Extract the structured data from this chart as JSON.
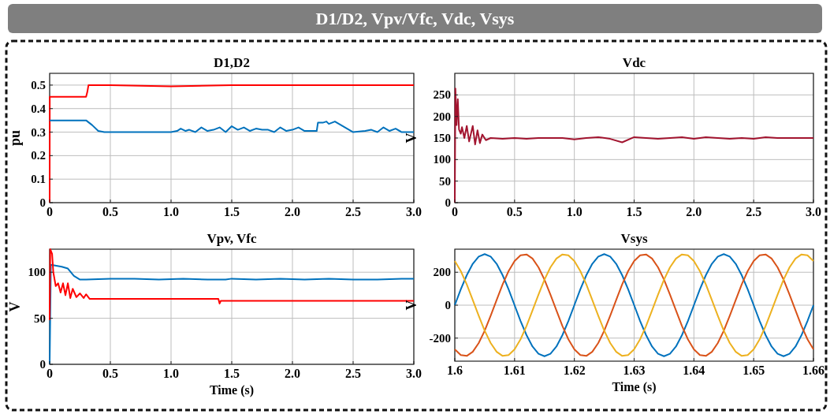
{
  "chart_data": [
    {
      "type": "other",
      "title": "D1/D2, Vpv/Vfc, Vdc, Vsys"
    },
    {
      "type": "line",
      "title": "D1,D2",
      "ylabel": "pu",
      "xlim": [
        0,
        3
      ],
      "ylim": [
        0,
        0.55
      ],
      "xticks": [
        0,
        0.5,
        {
          "value": 1,
          "label": "1.0"
        },
        1.5,
        {
          "value": 2,
          "label": "2.0"
        },
        2.5,
        {
          "value": 3,
          "label": "3.0"
        }
      ],
      "yticks": [
        0,
        0.1,
        0.2,
        0.3,
        0.4,
        0.5
      ],
      "grid": true,
      "marker": "none",
      "line_style": "solid",
      "series": [
        {
          "color": "#ff0000",
          "x": [
            0,
            0.001,
            0.3,
            0.31,
            0.32,
            0.5,
            1.0,
            1.5,
            2.0,
            2.5,
            3.0
          ],
          "values": [
            0,
            0.45,
            0.45,
            0.47,
            0.5,
            0.5,
            0.495,
            0.5,
            0.5,
            0.5,
            0.5
          ]
        },
        {
          "color": "#0072bd",
          "x": [
            0,
            0.3,
            0.35,
            0.4,
            0.45,
            0.6,
            0.8,
            1.0,
            1.05,
            1.08,
            1.12,
            1.15,
            1.2,
            1.25,
            1.3,
            1.35,
            1.4,
            1.45,
            1.5,
            1.55,
            1.6,
            1.65,
            1.7,
            1.75,
            1.8,
            1.85,
            1.9,
            1.95,
            2.0,
            2.05,
            2.1,
            2.15,
            2.2,
            2.21,
            2.25,
            2.28,
            2.3,
            2.35,
            2.4,
            2.45,
            2.5,
            2.6,
            2.65,
            2.7,
            2.75,
            2.8,
            2.85,
            2.9,
            3.0
          ],
          "values": [
            0.35,
            0.35,
            0.33,
            0.305,
            0.3,
            0.3,
            0.3,
            0.3,
            0.305,
            0.315,
            0.305,
            0.31,
            0.3,
            0.32,
            0.305,
            0.31,
            0.32,
            0.3,
            0.325,
            0.31,
            0.32,
            0.305,
            0.315,
            0.31,
            0.31,
            0.3,
            0.32,
            0.305,
            0.31,
            0.32,
            0.305,
            0.305,
            0.305,
            0.34,
            0.34,
            0.345,
            0.335,
            0.345,
            0.33,
            0.315,
            0.3,
            0.305,
            0.31,
            0.3,
            0.32,
            0.305,
            0.315,
            0.3,
            0.3
          ]
        }
      ]
    },
    {
      "type": "line",
      "title": "Vdc",
      "ylabel": "V",
      "xlim": [
        0,
        3
      ],
      "ylim": [
        0,
        300
      ],
      "xticks": [
        0,
        0.5,
        {
          "value": 1,
          "label": "1.0"
        },
        1.5,
        {
          "value": 2,
          "label": "2.0"
        },
        2.5,
        {
          "value": 3,
          "label": "3.0"
        }
      ],
      "yticks": [
        0,
        50,
        100,
        150,
        200,
        250
      ],
      "grid": true,
      "marker": "none",
      "line_style": "solid",
      "series": [
        {
          "color": "#a2142f",
          "x": [
            0,
            0.005,
            0.015,
            0.025,
            0.035,
            0.05,
            0.06,
            0.08,
            0.1,
            0.12,
            0.15,
            0.17,
            0.19,
            0.21,
            0.23,
            0.26,
            0.3,
            0.4,
            0.5,
            0.6,
            0.7,
            0.8,
            0.9,
            1.0,
            1.1,
            1.2,
            1.3,
            1.4,
            1.5,
            1.6,
            1.7,
            1.8,
            1.9,
            2.0,
            2.1,
            2.2,
            2.3,
            2.4,
            2.5,
            2.6,
            2.7,
            2.8,
            2.9,
            3.0
          ],
          "values": [
            0,
            265,
            180,
            240,
            170,
            160,
            175,
            150,
            178,
            142,
            178,
            135,
            168,
            138,
            158,
            145,
            150,
            148,
            150,
            148,
            150,
            150,
            150,
            147,
            150,
            152,
            148,
            140,
            152,
            150,
            148,
            150,
            152,
            148,
            152,
            150,
            148,
            150,
            148,
            152,
            150,
            150,
            150,
            150
          ]
        }
      ]
    },
    {
      "type": "line",
      "title": "Vpv, Vfc",
      "xlabel": "Time (s)",
      "ylabel": "V",
      "xlim": [
        0,
        3
      ],
      "ylim": [
        0,
        125
      ],
      "xticks": [
        0,
        0.5,
        {
          "value": 1,
          "label": "1.0"
        },
        1.5,
        {
          "value": 2,
          "label": "2.0"
        },
        2.5,
        {
          "value": 3,
          "label": "3.0"
        }
      ],
      "yticks": [
        0,
        50,
        100
      ],
      "grid": true,
      "marker": "none",
      "line_style": "solid",
      "series": [
        {
          "color": "#0072bd",
          "x": [
            0,
            0.01,
            0.1,
            0.15,
            0.2,
            0.25,
            0.3,
            0.5,
            0.7,
            0.9,
            1.1,
            1.3,
            1.45,
            1.5,
            1.7,
            1.9,
            2.1,
            2.3,
            2.5,
            2.7,
            2.9,
            3.0
          ],
          "values": [
            0,
            108,
            106,
            104,
            96,
            92,
            92,
            93,
            93,
            92,
            93,
            92,
            92,
            93,
            92,
            93,
            92,
            93,
            92,
            92,
            93,
            93
          ]
        },
        {
          "color": "#ff0000",
          "x": [
            0,
            0.005,
            0.02,
            0.03,
            0.05,
            0.07,
            0.09,
            0.11,
            0.13,
            0.15,
            0.17,
            0.19,
            0.22,
            0.25,
            0.28,
            0.3,
            0.33,
            1.39,
            1.4,
            1.41,
            3.0
          ],
          "values": [
            48,
            125,
            120,
            100,
            85,
            88,
            78,
            88,
            75,
            88,
            72,
            82,
            73,
            77,
            72,
            76,
            71,
            71,
            66,
            69,
            69
          ]
        }
      ]
    },
    {
      "type": "line",
      "title": "Vsys",
      "xlabel": "Time (s)",
      "ylabel": "V",
      "xlim": [
        1.6,
        1.66
      ],
      "ylim": [
        -340,
        340
      ],
      "xticks": [
        1.6,
        1.61,
        1.62,
        1.63,
        1.64,
        1.65,
        1.66
      ],
      "yticks": [
        -200,
        0,
        200
      ],
      "grid": true,
      "marker": "none",
      "line_style": "solid",
      "x": [
        1.6,
        1.601,
        1.602,
        1.603,
        1.604,
        1.605,
        1.606,
        1.607,
        1.608,
        1.609,
        1.61,
        1.611,
        1.612,
        1.613,
        1.614,
        1.615,
        1.616,
        1.617,
        1.618,
        1.619,
        1.62,
        1.621,
        1.622,
        1.623,
        1.624,
        1.625,
        1.626,
        1.627,
        1.628,
        1.629,
        1.63,
        1.631,
        1.632,
        1.633,
        1.634,
        1.635,
        1.636,
        1.637,
        1.638,
        1.639,
        1.64,
        1.641,
        1.642,
        1.643,
        1.644,
        1.645,
        1.646,
        1.647,
        1.648,
        1.649,
        1.65,
        1.651,
        1.652,
        1.653,
        1.654,
        1.655,
        1.656,
        1.657,
        1.658,
        1.659,
        1.66
      ],
      "series": [
        {
          "color": "#0072bd",
          "values": [
            0,
            96,
            182,
            251,
            295,
            310,
            295,
            251,
            182,
            96,
            0,
            -96,
            -182,
            -251,
            -295,
            -310,
            -295,
            -251,
            -182,
            -96,
            0,
            96,
            182,
            251,
            295,
            310,
            295,
            251,
            182,
            96,
            0,
            -96,
            -182,
            -251,
            -295,
            -310,
            -295,
            -251,
            -182,
            -96,
            0,
            96,
            182,
            251,
            295,
            310,
            295,
            251,
            182,
            96,
            0,
            -96,
            -182,
            -251,
            -295,
            -310,
            -295,
            -251,
            -182,
            -96,
            0
          ]
        },
        {
          "color": "#d95319",
          "values": [
            -268,
            -303,
            -308,
            -283,
            -230,
            -155,
            -64,
            32,
            126,
            207,
            268,
            303,
            308,
            283,
            230,
            155,
            64,
            -32,
            -126,
            -207,
            -268,
            -303,
            -308,
            -283,
            -230,
            -155,
            -64,
            32,
            126,
            207,
            268,
            303,
            308,
            283,
            230,
            155,
            64,
            -32,
            -126,
            -207,
            -268,
            -303,
            -308,
            -283,
            -230,
            -155,
            -64,
            32,
            126,
            207,
            268,
            303,
            308,
            283,
            230,
            155,
            64,
            -32,
            -126,
            -207,
            -268
          ]
        },
        {
          "color": "#edb120",
          "values": [
            268,
            207,
            126,
            32,
            -64,
            -155,
            -230,
            -283,
            -308,
            -303,
            -268,
            -207,
            -126,
            -32,
            64,
            155,
            230,
            283,
            308,
            303,
            268,
            207,
            126,
            32,
            -64,
            -155,
            -230,
            -283,
            -308,
            -303,
            -268,
            -207,
            -126,
            -32,
            64,
            155,
            230,
            283,
            308,
            303,
            268,
            207,
            126,
            32,
            -64,
            -155,
            -230,
            -283,
            -308,
            -303,
            -268,
            -207,
            -126,
            -32,
            64,
            155,
            230,
            283,
            308,
            303,
            268
          ]
        }
      ]
    }
  ]
}
